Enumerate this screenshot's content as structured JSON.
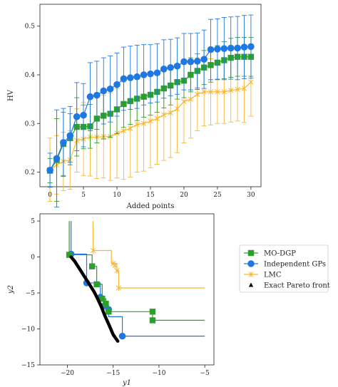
{
  "colors": {
    "mo_dgp": "#2ca02c",
    "ind_gps": "#1f77e4",
    "lmc": "#f7b731",
    "pareto": "#000000",
    "legend_frame": "#cccccc"
  },
  "chart_data": [
    {
      "type": "line",
      "xlabel": "Added points",
      "ylabel": "HV",
      "xlim": [
        -1.5,
        31.5
      ],
      "ylim": [
        0.17,
        0.545
      ],
      "xticks": [
        0,
        5,
        10,
        15,
        20,
        25,
        30
      ],
      "yticks": [
        0.2,
        0.3,
        0.4,
        0.5
      ],
      "ytick_labels": [
        "0.2",
        "0.3",
        "0.4",
        "0.5"
      ],
      "grid": false,
      "x": [
        0,
        1,
        2,
        3,
        4,
        5,
        6,
        7,
        8,
        9,
        10,
        11,
        12,
        13,
        14,
        15,
        16,
        17,
        18,
        19,
        20,
        21,
        22,
        23,
        24,
        25,
        26,
        27,
        28,
        29,
        30
      ],
      "series": [
        {
          "name": "MO-DGP",
          "marker": "square",
          "color_key": "mo_dgp",
          "values": [
            0.203,
            0.225,
            0.258,
            0.27,
            0.293,
            0.293,
            0.294,
            0.31,
            0.316,
            0.32,
            0.329,
            0.34,
            0.346,
            0.351,
            0.355,
            0.359,
            0.365,
            0.372,
            0.378,
            0.385,
            0.388,
            0.4,
            0.408,
            0.415,
            0.42,
            0.425,
            0.43,
            0.435,
            0.437,
            0.437,
            0.437
          ],
          "err": [
            0.025,
            0.085,
            0.065,
            0.05,
            0.06,
            0.045,
            0.045,
            0.05,
            0.048,
            0.048,
            0.05,
            0.048,
            0.048,
            0.045,
            0.042,
            0.042,
            0.042,
            0.04,
            0.04,
            0.035,
            0.035,
            0.035,
            0.035,
            0.035,
            0.035,
            0.035,
            0.038,
            0.04,
            0.04,
            0.04,
            0.04
          ]
        },
        {
          "name": "Independent GPs",
          "marker": "circle",
          "color_key": "ind_gps",
          "values": [
            0.204,
            0.228,
            0.261,
            0.275,
            0.314,
            0.317,
            0.355,
            0.358,
            0.367,
            0.371,
            0.38,
            0.392,
            0.394,
            0.396,
            0.4,
            0.402,
            0.404,
            0.412,
            0.415,
            0.418,
            0.427,
            0.427,
            0.428,
            0.432,
            0.452,
            0.453,
            0.454,
            0.455,
            0.455,
            0.457,
            0.458
          ],
          "err": [
            0.035,
            0.1,
            0.07,
            0.06,
            0.07,
            0.065,
            0.07,
            0.07,
            0.068,
            0.068,
            0.065,
            0.065,
            0.065,
            0.065,
            0.062,
            0.06,
            0.06,
            0.06,
            0.058,
            0.058,
            0.058,
            0.058,
            0.058,
            0.06,
            0.062,
            0.062,
            0.064,
            0.064,
            0.065,
            0.065,
            0.065
          ]
        },
        {
          "name": "LMC",
          "marker": "x",
          "color_key": "lmc",
          "values": [
            0.205,
            0.215,
            0.222,
            0.225,
            0.265,
            0.268,
            0.272,
            0.272,
            0.273,
            0.273,
            0.28,
            0.285,
            0.29,
            0.298,
            0.3,
            0.305,
            0.31,
            0.318,
            0.322,
            0.33,
            0.345,
            0.35,
            0.36,
            0.365,
            0.365,
            0.365,
            0.365,
            0.368,
            0.37,
            0.372,
            0.385
          ],
          "err": [
            0.065,
            0.06,
            0.06,
            0.06,
            0.065,
            0.075,
            0.08,
            0.085,
            0.085,
            0.09,
            0.092,
            0.1,
            0.1,
            0.098,
            0.098,
            0.096,
            0.094,
            0.094,
            0.092,
            0.09,
            0.085,
            0.08,
            0.075,
            0.07,
            0.068,
            0.065,
            0.065,
            0.065,
            0.065,
            0.07,
            0.07
          ]
        }
      ]
    },
    {
      "type": "line",
      "xlabel": "y1",
      "ylabel": "y2",
      "xlim": [
        -23,
        -4
      ],
      "ylim": [
        -15,
        6
      ],
      "xticks": [
        -20,
        -15,
        -10,
        -5
      ],
      "xtick_labels": [
        "−20",
        "−15",
        "−10",
        "−5"
      ],
      "yticks": [
        5,
        0,
        -5,
        -10,
        -15
      ],
      "ytick_labels": [
        "5",
        "0",
        "−5",
        "−10",
        "−15"
      ],
      "grid": false,
      "legend_position": "outside right",
      "series": [
        {
          "name": "MO-DGP",
          "marker": "square",
          "color_key": "mo_dgp",
          "step_path": [
            [
              -19.8,
              5
            ],
            [
              -19.8,
              0.3
            ],
            [
              -17.3,
              0.3
            ],
            [
              -17.3,
              -1.3
            ],
            [
              -16.8,
              -1.3
            ],
            [
              -16.8,
              -3.8
            ],
            [
              -16.2,
              -3.8
            ],
            [
              -16.2,
              -5.8
            ],
            [
              -15.8,
              -5.8
            ],
            [
              -15.8,
              -7.0
            ],
            [
              -15.5,
              -7.0
            ],
            [
              -15.5,
              -7.6
            ],
            [
              -10.7,
              -7.6
            ],
            [
              -10.7,
              -8.8
            ],
            [
              -5,
              -8.8
            ]
          ],
          "points": [
            [
              -19.8,
              0.3
            ],
            [
              -17.3,
              -1.3
            ],
            [
              -16.8,
              -3.8
            ],
            [
              -16.2,
              -5.8
            ],
            [
              -15.8,
              -6.5
            ],
            [
              -15.5,
              -7.6
            ],
            [
              -10.7,
              -7.6
            ],
            [
              -10.7,
              -8.8
            ]
          ]
        },
        {
          "name": "Independent GPs",
          "marker": "circle",
          "color_key": "ind_gps",
          "step_path": [
            [
              -19.6,
              5
            ],
            [
              -19.6,
              0.4
            ],
            [
              -17.9,
              0.4
            ],
            [
              -17.9,
              -3.6
            ],
            [
              -16.4,
              -3.6
            ],
            [
              -16.4,
              -5.6
            ],
            [
              -16.0,
              -5.6
            ],
            [
              -16.0,
              -6.8
            ],
            [
              -15.5,
              -6.8
            ],
            [
              -15.5,
              -8.3
            ],
            [
              -14.0,
              -8.3
            ],
            [
              -14.0,
              -11.0
            ],
            [
              -5,
              -11.0
            ]
          ],
          "points": [
            [
              -19.6,
              0.4
            ],
            [
              -17.9,
              -3.6
            ],
            [
              -16.4,
              -5.6
            ],
            [
              -16.0,
              -6.8
            ],
            [
              -15.5,
              -7.3
            ],
            [
              -14.0,
              -11.0
            ]
          ]
        },
        {
          "name": "LMC",
          "marker": "x",
          "color_key": "lmc",
          "step_path": [
            [
              -17.2,
              5
            ],
            [
              -17.2,
              0.9
            ],
            [
              -15.2,
              0.9
            ],
            [
              -15.2,
              -0.9
            ],
            [
              -14.6,
              -0.9
            ],
            [
              -14.6,
              -1.9
            ],
            [
              -14.4,
              -1.9
            ],
            [
              -14.4,
              -4.3
            ],
            [
              -5,
              -4.3
            ]
          ],
          "points": [
            [
              -17.2,
              0.9
            ],
            [
              -15.0,
              -0.9
            ],
            [
              -14.8,
              -1.2
            ],
            [
              -14.6,
              -1.9
            ],
            [
              -14.4,
              -4.3
            ]
          ]
        },
        {
          "name": "Exact Pareto front",
          "marker": "triangle",
          "color_key": "pareto",
          "curve": [
            [
              -19.6,
              0.0
            ],
            [
              -19.2,
              -0.6
            ],
            [
              -18.7,
              -1.6
            ],
            [
              -18.2,
              -2.6
            ],
            [
              -17.6,
              -3.8
            ],
            [
              -17.1,
              -4.8
            ],
            [
              -16.7,
              -5.8
            ],
            [
              -16.3,
              -6.9
            ],
            [
              -15.9,
              -8.2
            ],
            [
              -15.4,
              -9.6
            ],
            [
              -15.0,
              -10.8
            ],
            [
              -14.5,
              -11.7
            ]
          ]
        }
      ]
    }
  ]
}
